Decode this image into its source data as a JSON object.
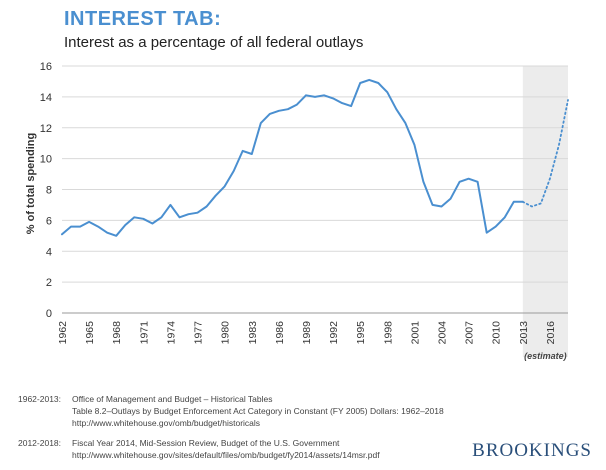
{
  "header": {
    "title": "INTEREST TAB:",
    "subtitle": "Interest as a percentage of all federal outlays"
  },
  "chart_data": {
    "type": "line",
    "title": "INTEREST TAB:",
    "subtitle": "Interest as a percentage of all federal outlays",
    "xlabel": "",
    "ylabel": "% of total spending",
    "xlim": [
      1962,
      2018
    ],
    "ylim": [
      0,
      16
    ],
    "yticks": [
      0,
      2,
      4,
      6,
      8,
      10,
      12,
      14,
      16
    ],
    "xtick_labels": [
      "1962",
      "1965",
      "1968",
      "1971",
      "1974",
      "1977",
      "1980",
      "1983",
      "1986",
      "1989",
      "1992",
      "1995",
      "1998",
      "2001",
      "2004",
      "2007",
      "2010",
      "2013",
      "2016"
    ],
    "grid": true,
    "estimate_region": {
      "start": 2013,
      "end": 2018,
      "label": "(estimate)"
    },
    "series": [
      {
        "style": "solid",
        "x": [
          1962,
          1963,
          1964,
          1965,
          1966,
          1967,
          1968,
          1969,
          1970,
          1971,
          1972,
          1973,
          1974,
          1975,
          1976,
          1977,
          1978,
          1979,
          1980,
          1981,
          1982,
          1983,
          1984,
          1985,
          1986,
          1987,
          1988,
          1989,
          1990,
          1991,
          1992,
          1993,
          1994,
          1995,
          1996,
          1997,
          1998,
          1999,
          2000,
          2001,
          2002,
          2003,
          2004,
          2005,
          2006,
          2007,
          2008,
          2009,
          2010,
          2011,
          2012,
          2013
        ],
        "values": [
          5.1,
          5.6,
          5.6,
          5.9,
          5.6,
          5.2,
          5.0,
          5.7,
          6.2,
          6.1,
          5.8,
          6.2,
          7.0,
          6.2,
          6.4,
          6.5,
          6.9,
          7.6,
          8.2,
          9.2,
          10.5,
          10.3,
          12.3,
          12.9,
          13.1,
          13.2,
          13.5,
          14.1,
          14.0,
          14.1,
          13.9,
          13.6,
          13.4,
          14.9,
          15.1,
          14.9,
          14.3,
          13.2,
          12.3,
          10.9,
          8.5,
          7.0,
          6.9,
          7.4,
          8.5,
          8.7,
          8.5,
          5.2,
          5.6,
          6.2,
          7.2,
          7.2
        ]
      },
      {
        "style": "dotted",
        "x": [
          2013,
          2014,
          2015,
          2016,
          2017,
          2018
        ],
        "values": [
          7.2,
          6.9,
          7.1,
          8.7,
          10.9,
          13.8
        ]
      }
    ]
  },
  "sources": [
    {
      "range": "1962-2013:",
      "lines": [
        "Office of Management and Budget – Historical Tables",
        "Table 8.2–Outlays by Budget Enforcement Act Category in Constant (FY 2005) Dollars: 1962–2018",
        "http://www.whitehouse.gov/omb/budget/historicals"
      ]
    },
    {
      "range": "2012-2018:",
      "lines": [
        "Fiscal Year 2014, Mid-Session Review, Budget of the U.S. Government",
        "http://www.whitehouse.gov/sites/default/files/omb/budget/fy2014/assets/14msr.pdf"
      ]
    }
  ],
  "brand": "BROOKINGS",
  "colors": {
    "line": "#4a8fd0",
    "title": "#4a8fd0",
    "grid": "#d9d9d9",
    "estimate_shade": "#ececec",
    "brand": "#2a4f7a"
  }
}
